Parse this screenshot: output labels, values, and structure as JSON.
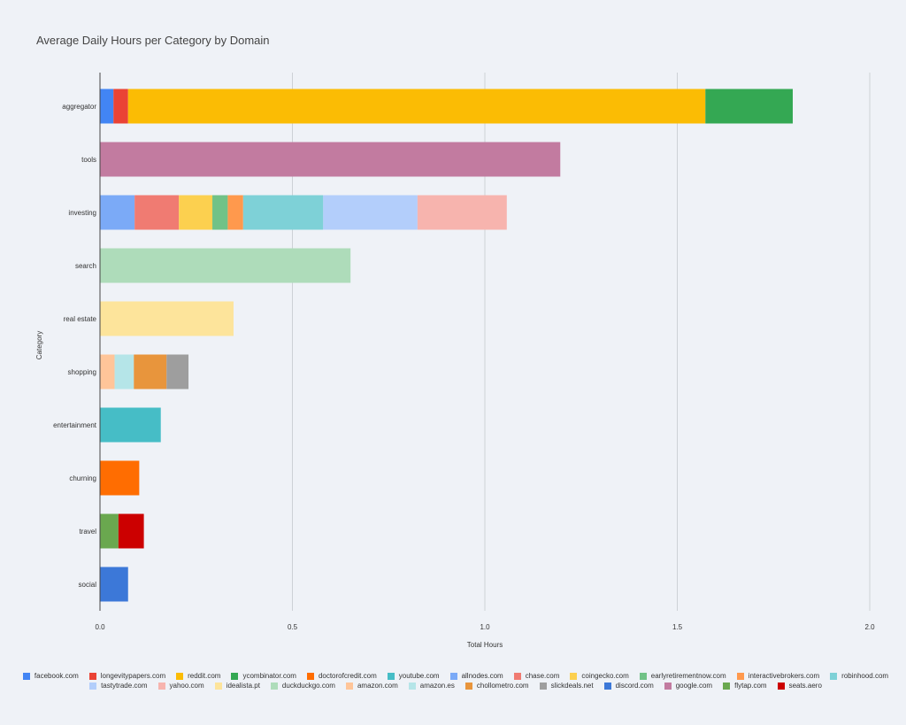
{
  "chart_data": {
    "type": "bar",
    "orientation": "horizontal",
    "stacked": true,
    "title": "Average Daily Hours per Category by Domain",
    "xlabel": "Total Hours",
    "ylabel": "Category",
    "xlim": [
      0,
      2.0
    ],
    "xticks": [
      "0.0",
      "0.5",
      "1.0",
      "1.5",
      "2.0"
    ],
    "grid": true,
    "legend_position": "bottom",
    "categories": [
      "aggregator",
      "tools",
      "investing",
      "search",
      "real estate",
      "shopping",
      "entertainment",
      "churning",
      "travel",
      "social"
    ],
    "series": [
      {
        "name": "facebook.com",
        "color": "#4285f4",
        "values": [
          0.035,
          0,
          0,
          0,
          0,
          0,
          0,
          0,
          0,
          0
        ]
      },
      {
        "name": "longevitypapers.com",
        "color": "#ea4335",
        "values": [
          0.038,
          0,
          0,
          0,
          0,
          0,
          0,
          0,
          0,
          0
        ]
      },
      {
        "name": "reddit.com",
        "color": "#fbbc04",
        "values": [
          1.5,
          0,
          0,
          0,
          0,
          0,
          0,
          0,
          0,
          0
        ]
      },
      {
        "name": "ycombinator.com",
        "color": "#34a853",
        "values": [
          0.227,
          0,
          0,
          0,
          0,
          0,
          0,
          0,
          0,
          0
        ]
      },
      {
        "name": "doctorofcredit.com",
        "color": "#ff6d01",
        "values": [
          0,
          0,
          0,
          0,
          0,
          0,
          0,
          0.102,
          0,
          0
        ]
      },
      {
        "name": "youtube.com",
        "color": "#46bdc6",
        "values": [
          0,
          0,
          0,
          0,
          0,
          0,
          0.158,
          0,
          0,
          0
        ]
      },
      {
        "name": "allnodes.com",
        "color": "#7baaf7",
        "values": [
          0,
          0,
          0.09,
          0,
          0,
          0,
          0,
          0,
          0,
          0
        ]
      },
      {
        "name": "chase.com",
        "color": "#f07b72",
        "values": [
          0,
          0,
          0.115,
          0,
          0,
          0,
          0,
          0,
          0,
          0
        ]
      },
      {
        "name": "coingecko.com",
        "color": "#fcd04f",
        "values": [
          0,
          0,
          0.087,
          0,
          0,
          0,
          0,
          0,
          0,
          0
        ]
      },
      {
        "name": "earlyretirementnow.com",
        "color": "#71c287",
        "values": [
          0,
          0,
          0.04,
          0,
          0,
          0,
          0,
          0,
          0,
          0
        ]
      },
      {
        "name": "interactivebrokers.com",
        "color": "#ff994d",
        "values": [
          0,
          0,
          0.04,
          0,
          0,
          0,
          0,
          0,
          0,
          0
        ]
      },
      {
        "name": "robinhood.com",
        "color": "#7ed1d7",
        "values": [
          0,
          0,
          0.208,
          0,
          0,
          0,
          0,
          0,
          0,
          0
        ]
      },
      {
        "name": "tastytrade.com",
        "color": "#b3cefb",
        "values": [
          0,
          0,
          0.245,
          0,
          0,
          0,
          0,
          0,
          0,
          0
        ]
      },
      {
        "name": "yahoo.com",
        "color": "#f7b4ae",
        "values": [
          0,
          0,
          0.232,
          0,
          0,
          0,
          0,
          0,
          0,
          0
        ]
      },
      {
        "name": "idealista.pt",
        "color": "#fde49b",
        "values": [
          0,
          0,
          0,
          0,
          0.347,
          0,
          0,
          0,
          0,
          0
        ]
      },
      {
        "name": "duckduckgo.com",
        "color": "#aedcba",
        "values": [
          0,
          0,
          0,
          0.651,
          0,
          0,
          0,
          0,
          0,
          0
        ]
      },
      {
        "name": "amazon.com",
        "color": "#ffc599",
        "values": [
          0,
          0,
          0,
          0,
          0,
          0.038,
          0,
          0,
          0,
          0
        ]
      },
      {
        "name": "amazon.es",
        "color": "#b5e5e8",
        "values": [
          0,
          0,
          0,
          0,
          0,
          0.05,
          0,
          0,
          0,
          0
        ]
      },
      {
        "name": "chollometro.com",
        "color": "#e8953c",
        "values": [
          0,
          0,
          0,
          0,
          0,
          0.085,
          0,
          0,
          0,
          0
        ]
      },
      {
        "name": "slickdeals.net",
        "color": "#9e9e9e",
        "values": [
          0,
          0,
          0,
          0,
          0,
          0.057,
          0,
          0,
          0,
          0
        ]
      },
      {
        "name": "discord.com",
        "color": "#3c78d8",
        "values": [
          0,
          0,
          0,
          0,
          0,
          0,
          0,
          0,
          0,
          0.073
        ]
      },
      {
        "name": "google.com",
        "color": "#c27ba0",
        "values": [
          0,
          1.196,
          0,
          0,
          0,
          0,
          0,
          0,
          0,
          0
        ]
      },
      {
        "name": "flytap.com",
        "color": "#6aa84f",
        "values": [
          0,
          0,
          0,
          0,
          0,
          0,
          0,
          0,
          0.048,
          0
        ]
      },
      {
        "name": "seats.aero",
        "color": "#cc0000",
        "values": [
          0,
          0,
          0,
          0,
          0,
          0,
          0,
          0,
          0.066,
          0
        ]
      }
    ]
  }
}
